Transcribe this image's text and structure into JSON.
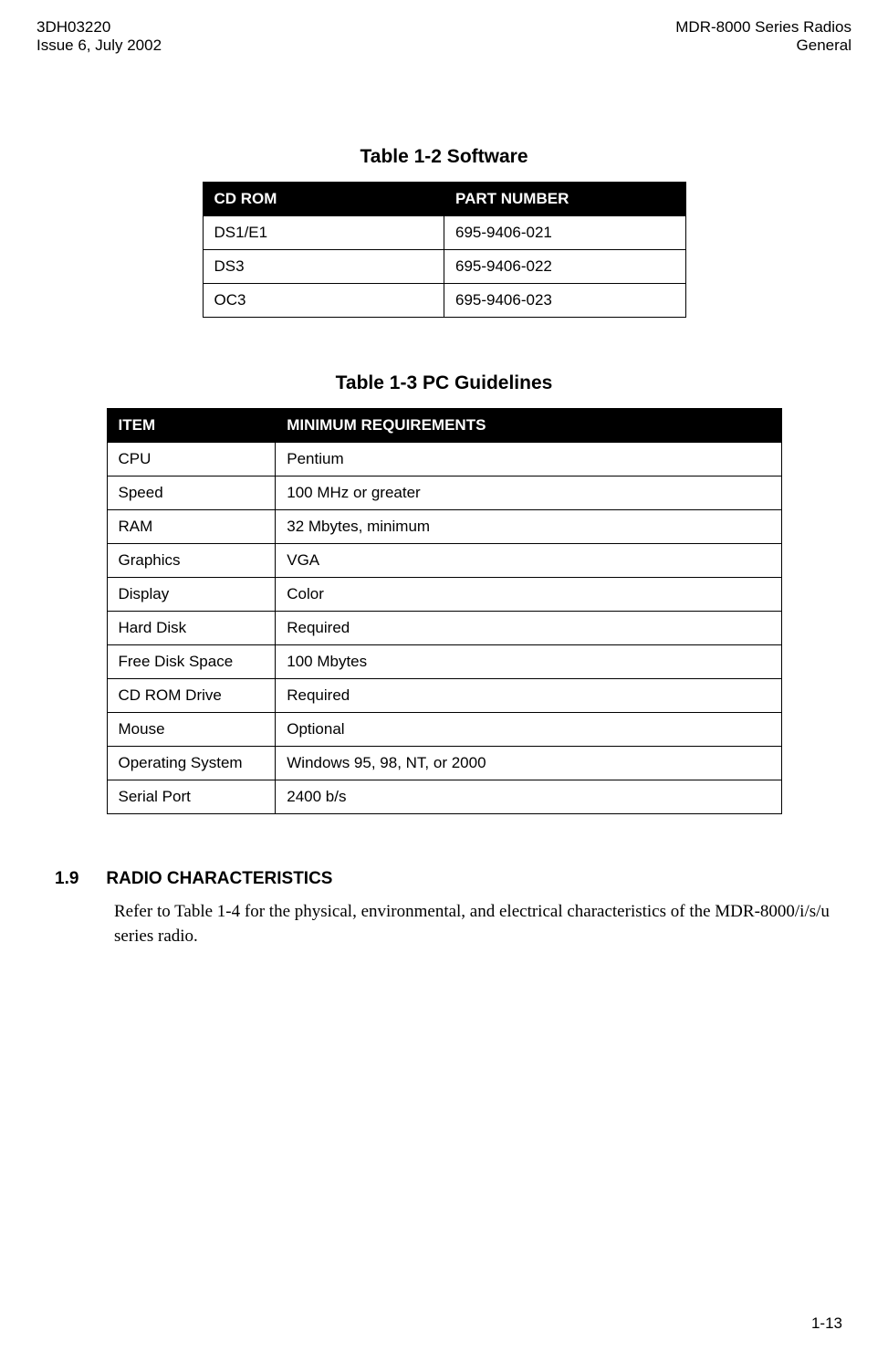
{
  "header": {
    "left_line1": "3DH03220",
    "left_line2": "Issue 6, July 2002",
    "right_line1": "MDR-8000 Series Radios",
    "right_line2": "General"
  },
  "table1": {
    "title": "Table 1-2  Software",
    "columns": [
      "CD ROM",
      "PART NUMBER"
    ],
    "rows": [
      [
        "DS1/E1",
        "695-9406-021"
      ],
      [
        "DS3",
        "695-9406-022"
      ],
      [
        "OC3",
        "695-9406-023"
      ]
    ]
  },
  "table2": {
    "title": "Table 1-3  PC Guidelines",
    "columns": [
      "ITEM",
      "MINIMUM REQUIREMENTS"
    ],
    "rows": [
      [
        "CPU",
        "Pentium"
      ],
      [
        "Speed",
        "100 MHz or greater"
      ],
      [
        "RAM",
        "32 Mbytes, minimum"
      ],
      [
        "Graphics",
        "VGA"
      ],
      [
        "Display",
        "Color"
      ],
      [
        "Hard Disk",
        "Required"
      ],
      [
        "Free Disk Space",
        "100 Mbytes"
      ],
      [
        "CD ROM Drive",
        "Required"
      ],
      [
        "Mouse",
        "Optional"
      ],
      [
        "Operating System",
        "Windows 95, 98, NT, or 2000"
      ],
      [
        "Serial Port",
        "2400 b/s"
      ]
    ]
  },
  "section": {
    "number": "1.9",
    "title": "RADIO CHARACTERISTICS",
    "body": "Refer to Table 1-4 for the physical, environmental, and electrical characteristics of the MDR-8000/i/s/u series radio."
  },
  "footer": {
    "page": "1-13"
  }
}
